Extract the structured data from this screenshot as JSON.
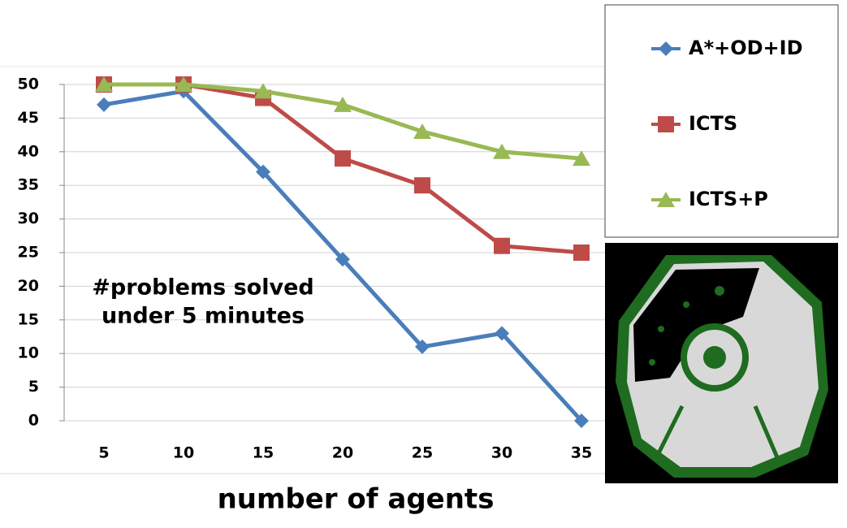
{
  "chart_data": {
    "type": "line",
    "categories": [
      "5",
      "10",
      "15",
      "20",
      "25",
      "30",
      "35"
    ],
    "series": [
      {
        "name": "A*+OD+ID",
        "color": "#4a7ebb",
        "marker": "diamond",
        "values": [
          47,
          49,
          37,
          24,
          11,
          13,
          0
        ]
      },
      {
        "name": "ICTS",
        "color": "#be4b48",
        "marker": "square",
        "values": [
          50,
          50,
          48,
          39,
          35,
          26,
          25
        ]
      },
      {
        "name": "ICTS+P",
        "color": "#98b954",
        "marker": "triangle",
        "values": [
          50,
          50,
          49,
          47,
          43,
          40,
          39
        ]
      }
    ],
    "ylim": [
      0,
      50
    ],
    "yticks": [
      0,
      5,
      10,
      15,
      20,
      25,
      30,
      35,
      40,
      45,
      50
    ],
    "grid": true,
    "annotation": [
      "#problems solved",
      "under 5 minutes"
    ],
    "xlabel": "number of agents",
    "legend": "right"
  }
}
